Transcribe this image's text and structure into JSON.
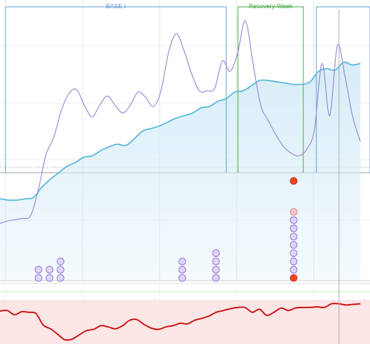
{
  "phases": [
    {
      "name": "BASE I",
      "color": "#5b9bd5"
    },
    {
      "name": "Recovery-Week",
      "color": "#3faa3f"
    },
    {
      "name": "",
      "color": "#5b9bd5"
    }
  ],
  "colors": {
    "fatigue_line": "#9b87d6",
    "fitness_line": "#56b8dc",
    "fitness_fill": "#d5ecf7",
    "form_line": "#cc1111",
    "form_fill": "#fde6e6",
    "gridline": "#e3e3e3",
    "marker_today": "#ee4422",
    "workout_dot_fill": "#ddd5f7",
    "workout_dot_stroke": "#9275d4",
    "planned_dot_fill": "#f4c4c9",
    "planned_dot_stroke": "#d4888f",
    "cursor_line": "#aaaaaa"
  },
  "chart_data": [
    {
      "type": "line",
      "series": [
        {
          "role": "fatigue",
          "values": [
            44,
            46,
            47,
            48,
            50,
            70,
            97,
            110,
            131,
            144,
            147,
            135,
            126,
            135,
            142,
            135,
            129,
            135,
            145,
            141,
            134,
            146,
            176,
            190,
            177,
            159,
            146,
            146,
            148,
            169,
            161,
            175,
            200,
            167,
            135,
            123,
            112,
            103,
            98,
            96,
            101,
            116,
            167,
            127,
            181,
            157,
            126,
            107
          ]
        },
        {
          "role": "fitness",
          "values": [
            63,
            62,
            62,
            63,
            64,
            72,
            78,
            83,
            88,
            91,
            95,
            96,
            100,
            103,
            105,
            104,
            109,
            115,
            117,
            119,
            122,
            125,
            127,
            129,
            133,
            134,
            138,
            140,
            145,
            146,
            150,
            154,
            154,
            153,
            152,
            151,
            151,
            153,
            161,
            163,
            162,
            168,
            166,
            167
          ]
        },
        {
          "role": "form",
          "values": [
            54,
            55,
            48,
            53,
            52,
            50,
            31,
            25,
            16,
            7,
            8,
            15,
            22,
            24,
            30,
            28,
            25,
            30,
            39,
            40,
            32,
            26,
            24,
            28,
            30,
            34,
            33,
            39,
            42,
            46,
            52,
            55,
            58,
            60,
            60,
            52,
            57,
            47,
            52,
            59,
            55,
            59,
            60,
            60,
            61,
            60,
            66,
            66,
            64,
            65,
            66
          ]
        }
      ]
    }
  ],
  "workout_dots": [
    {
      "count": 2,
      "planned_top": false,
      "today": false
    },
    {
      "count": 2,
      "planned_top": false,
      "today": false
    },
    {
      "count": 3,
      "planned_top": false,
      "today": false
    },
    {
      "count": 3,
      "planned_top": false,
      "today": false
    },
    {
      "count": 4,
      "planned_top": false,
      "today": false
    },
    {
      "count": 9,
      "planned_top": true,
      "today": true
    }
  ]
}
